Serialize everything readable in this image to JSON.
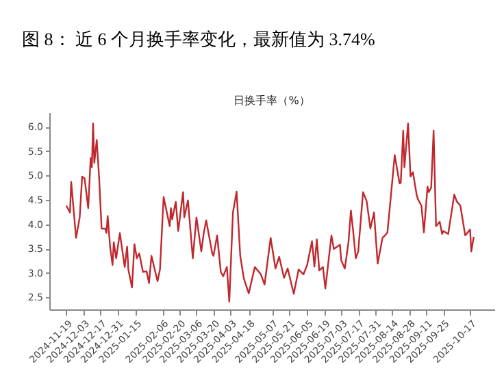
{
  "chart_data": {
    "type": "line",
    "title": "图 8： 近 6 个月换手率变化，最新值为 3.74%",
    "subtitle": "日换手率（%）",
    "x": [
      "2024-11-19",
      "2024-11-22",
      "2024-11-23",
      "2024-11-27",
      "2024-11-30",
      "2024-12-02",
      "2024-12-04",
      "2024-12-07",
      "2024-12-09",
      "2024-12-10",
      "2024-12-11",
      "2024-12-12",
      "2024-12-14",
      "2024-12-16",
      "2024-12-18",
      "2024-12-21",
      "2024-12-22",
      "2024-12-23",
      "2024-12-25",
      "2024-12-27",
      "2024-12-28",
      "2024-12-30",
      "2025-01-02",
      "2025-01-06",
      "2025-01-08",
      "2025-01-09",
      "2025-01-12",
      "2025-01-14",
      "2025-01-16",
      "2025-01-18",
      "2025-01-21",
      "2025-01-24",
      "2025-01-26",
      "2025-01-28",
      "2025-02-02",
      "2025-02-04",
      "2025-02-07",
      "2025-02-12",
      "2025-02-13",
      "2025-02-14",
      "2025-02-17",
      "2025-02-19",
      "2025-02-23",
      "2025-02-24",
      "2025-02-27",
      "2025-03-03",
      "2025-03-06",
      "2025-03-10",
      "2025-03-12",
      "2025-03-14",
      "2025-03-19",
      "2025-03-20",
      "2025-03-23",
      "2025-03-26",
      "2025-03-28",
      "2025-03-31",
      "2025-04-02",
      "2025-04-05",
      "2025-04-08",
      "2025-04-11",
      "2025-04-14",
      "2025-04-18",
      "2025-04-23",
      "2025-04-28",
      "2025-05-01",
      "2025-05-06",
      "2025-05-10",
      "2025-05-13",
      "2025-05-17",
      "2025-05-20",
      "2025-05-25",
      "2025-05-29",
      "2025-06-02",
      "2025-06-05",
      "2025-06-09",
      "2025-06-11",
      "2025-06-13",
      "2025-06-15",
      "2025-06-18",
      "2025-06-20",
      "2025-06-25",
      "2025-06-27",
      "2025-07-02",
      "2025-07-03",
      "2025-07-06",
      "2025-07-09",
      "2025-07-11",
      "2025-07-13",
      "2025-07-15",
      "2025-07-17",
      "2025-07-21",
      "2025-07-24",
      "2025-07-27",
      "2025-07-30",
      "2025-08-02",
      "2025-08-06",
      "2025-08-08",
      "2025-08-10",
      "2025-08-13",
      "2025-08-16",
      "2025-08-20",
      "2025-08-21",
      "2025-08-23",
      "2025-08-24",
      "2025-08-27",
      "2025-08-29",
      "2025-08-31",
      "2025-09-03",
      "2025-09-04",
      "2025-09-07",
      "2025-09-09",
      "2025-09-12",
      "2025-09-13",
      "2025-09-15",
      "2025-09-17",
      "2025-09-19",
      "2025-09-22",
      "2025-09-24",
      "2025-09-25",
      "2025-09-29",
      "2025-10-04",
      "2025-10-06",
      "2025-10-09",
      "2025-10-13",
      "2025-10-17",
      "2025-10-18",
      "2025-10-20"
    ],
    "series": [
      {
        "color": "#c0282d",
        "values": [
          4.38,
          4.24,
          4.87,
          3.72,
          4.14,
          4.98,
          4.94,
          4.33,
          5.36,
          5.17,
          6.07,
          5.26,
          5.73,
          4.94,
          3.91,
          3.91,
          3.82,
          4.17,
          3.54,
          3.16,
          3.63,
          3.3,
          3.82,
          3.12,
          3.54,
          3.07,
          2.7,
          3.59,
          3.3,
          3.4,
          3.02,
          3.03,
          2.79,
          3.35,
          2.83,
          3.07,
          4.56,
          3.96,
          4.33,
          4.1,
          4.46,
          3.86,
          4.66,
          4.14,
          4.49,
          3.3,
          4.14,
          3.44,
          3.82,
          4.08,
          3.4,
          3.35,
          3.77,
          3.02,
          2.93,
          3.12,
          2.41,
          4.24,
          4.67,
          3.35,
          2.88,
          2.58,
          3.12,
          2.97,
          2.76,
          3.72,
          3.09,
          3.33,
          2.9,
          3.09,
          2.57,
          3.07,
          2.97,
          3.16,
          3.65,
          3.13,
          3.69,
          3.05,
          3.12,
          2.68,
          3.77,
          3.49,
          3.58,
          3.26,
          3.09,
          3.63,
          4.28,
          3.82,
          3.3,
          3.44,
          4.66,
          4.47,
          3.91,
          4.24,
          3.19,
          3.72,
          3.77,
          3.83,
          4.61,
          5.42,
          4.84,
          4.85,
          5.92,
          5.17,
          6.07,
          4.98,
          5.07,
          4.61,
          4.52,
          4.38,
          3.83,
          4.77,
          4.66,
          4.75,
          5.92,
          3.96,
          4.05,
          3.8,
          3.86,
          3.8,
          4.61,
          4.47,
          4.38,
          3.77,
          3.89,
          3.44,
          3.74
        ]
      }
    ],
    "xlim": [
      "2024-11-05",
      "2025-11-06"
    ],
    "xticks": [
      "2024-11-19",
      "2024-12-03",
      "2024-12-17",
      "2024-12-31",
      "2025-01-15",
      "2025-02-06",
      "2025-02-20",
      "2025-03-06",
      "2025-03-20",
      "2025-04-03",
      "2025-04-18",
      "2025-05-07",
      "2025-05-21",
      "2025-06-05",
      "2025-06-19",
      "2025-07-03",
      "2025-07-17",
      "2025-07-31",
      "2025-08-14",
      "2025-08-28",
      "2025-09-11",
      "2025-09-25",
      "2025-10-17"
    ],
    "ylim": [
      2.25,
      6.3
    ],
    "yticks": [
      {
        "value": 2.5,
        "label": "2.5"
      },
      {
        "value": 3,
        "label": "3.0"
      },
      {
        "value": 3.5,
        "label": "3.5"
      },
      {
        "value": 4,
        "label": "4.0"
      },
      {
        "value": 4.5,
        "label": "4.5"
      },
      {
        "value": 5,
        "label": "5.0"
      },
      {
        "value": 5.5,
        "label": "5.5"
      },
      {
        "value": 6,
        "label": "6.0"
      }
    ],
    "grid": false
  }
}
